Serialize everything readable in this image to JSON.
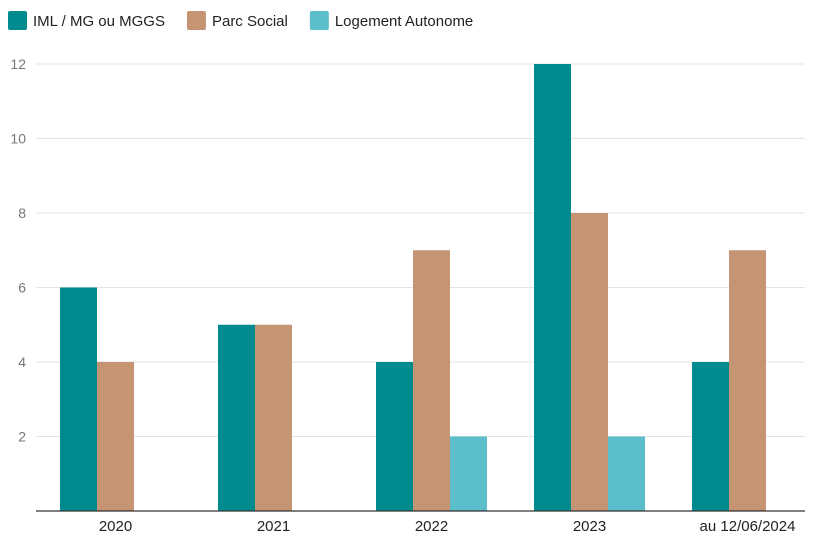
{
  "chart_data": {
    "type": "bar",
    "categories": [
      "2020",
      "2021",
      "2022",
      "2023",
      "au 12/06/2024"
    ],
    "series": [
      {
        "name": "IML / MG ou MGGS",
        "color": "#008C8F",
        "values": [
          6,
          5,
          4,
          12,
          4
        ]
      },
      {
        "name": "Parc Social",
        "color": "#C59573",
        "values": [
          4,
          5,
          7,
          8,
          7
        ]
      },
      {
        "name": "Logement Autonome",
        "color": "#5CBECB",
        "values": [
          0,
          0,
          2,
          2,
          0
        ]
      }
    ],
    "title": "",
    "xlabel": "",
    "ylabel": "",
    "ylim": [
      0,
      12
    ],
    "yticks": [
      2,
      4,
      6,
      8,
      10,
      12
    ],
    "grid": true,
    "legend_position": "top-left"
  }
}
